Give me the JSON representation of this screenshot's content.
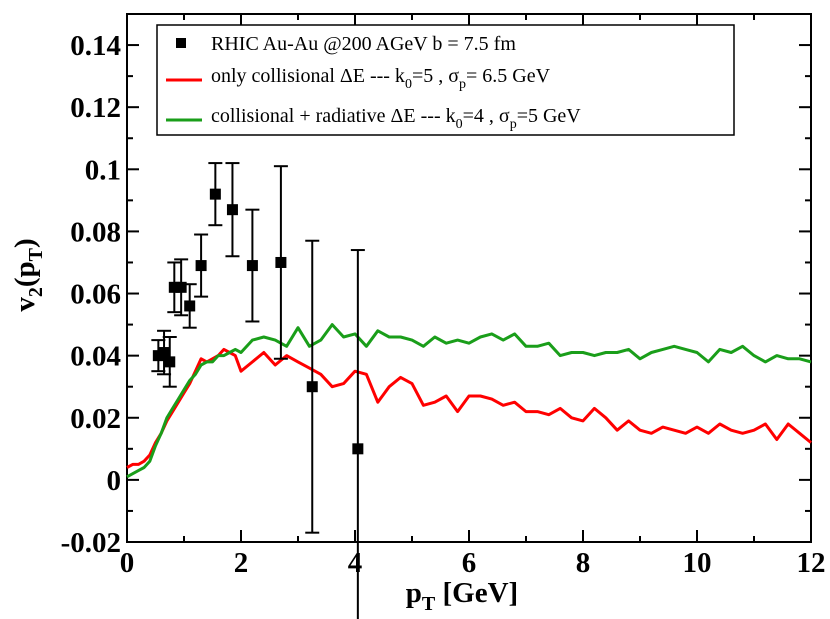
{
  "chart_data": {
    "type": "line",
    "xlabel": "p",
    "xlabel_sub": "T",
    "xlabel_unit": " [GeV]",
    "ylabel": "v",
    "ylabel_sub": "2",
    "ylabel_arg_open": "(p",
    "ylabel_arg_sub": "T",
    "ylabel_arg_close": ")",
    "xlim": [
      0,
      12
    ],
    "ylim": [
      -0.02,
      0.15
    ],
    "x_ticks": [
      0,
      2,
      4,
      6,
      8,
      10,
      12
    ],
    "x_tick_labels": [
      "0",
      "2",
      "4",
      "6",
      "8",
      "10",
      "12"
    ],
    "y_ticks": [
      -0.02,
      0,
      0.02,
      0.04,
      0.06,
      0.08,
      0.1,
      0.12,
      0.14
    ],
    "y_tick_labels": [
      "-0.02",
      "0",
      "0.02",
      "0.04",
      "0.06",
      "0.08",
      "0.1",
      "0.12",
      "0.14"
    ],
    "legend_position": "top",
    "data_points": {
      "name": "RHIC Au-Au @200 AGeV b = 7.5 fm",
      "legend_label": "RHIC Au-Au @200 AGeV b = 7.5 fm",
      "color": "#000000",
      "points": [
        {
          "x": 0.55,
          "y": 0.04,
          "err": 0.005
        },
        {
          "x": 0.65,
          "y": 0.041,
          "err": 0.007
        },
        {
          "x": 0.75,
          "y": 0.038,
          "err": 0.008
        },
        {
          "x": 0.83,
          "y": 0.062,
          "err": 0.008
        },
        {
          "x": 0.95,
          "y": 0.062,
          "err": 0.009
        },
        {
          "x": 1.1,
          "y": 0.056,
          "err": 0.007
        },
        {
          "x": 1.3,
          "y": 0.069,
          "err": 0.01
        },
        {
          "x": 1.55,
          "y": 0.092,
          "err": 0.01
        },
        {
          "x": 1.85,
          "y": 0.087,
          "err": 0.015
        },
        {
          "x": 2.2,
          "y": 0.069,
          "err": 0.018
        },
        {
          "x": 2.7,
          "y": 0.07,
          "err": 0.031
        },
        {
          "x": 3.25,
          "y": 0.03,
          "err": 0.047
        },
        {
          "x": 4.05,
          "y": 0.01,
          "err": 0.064
        }
      ]
    },
    "series": [
      {
        "name": "collisional",
        "legend_parts": [
          "only collisional ΔE --- k",
          "0",
          "=5 , σ",
          "p",
          "= 6.5 GeV"
        ],
        "color": "#ff0000",
        "x": [
          0.0,
          0.1,
          0.2,
          0.3,
          0.4,
          0.5,
          0.6,
          0.7,
          0.8,
          0.9,
          1.0,
          1.1,
          1.2,
          1.3,
          1.4,
          1.5,
          1.6,
          1.7,
          1.8,
          1.9,
          2.0,
          2.2,
          2.4,
          2.6,
          2.8,
          3.0,
          3.2,
          3.4,
          3.6,
          3.8,
          4.0,
          4.2,
          4.4,
          4.6,
          4.8,
          5.0,
          5.2,
          5.4,
          5.6,
          5.8,
          6.0,
          6.2,
          6.4,
          6.6,
          6.8,
          7.0,
          7.2,
          7.4,
          7.6,
          7.8,
          8.0,
          8.2,
          8.4,
          8.6,
          8.8,
          9.0,
          9.2,
          9.4,
          9.6,
          9.8,
          10.0,
          10.2,
          10.4,
          10.6,
          10.8,
          11.0,
          11.2,
          11.4,
          11.6,
          11.8,
          12.0
        ],
        "values": [
          0.004,
          0.005,
          0.005,
          0.006,
          0.008,
          0.012,
          0.015,
          0.019,
          0.022,
          0.025,
          0.028,
          0.031,
          0.035,
          0.039,
          0.038,
          0.039,
          0.04,
          0.042,
          0.041,
          0.04,
          0.035,
          0.038,
          0.041,
          0.037,
          0.04,
          0.038,
          0.036,
          0.034,
          0.03,
          0.031,
          0.035,
          0.034,
          0.025,
          0.03,
          0.033,
          0.031,
          0.024,
          0.025,
          0.027,
          0.022,
          0.027,
          0.027,
          0.026,
          0.024,
          0.025,
          0.022,
          0.022,
          0.021,
          0.023,
          0.02,
          0.019,
          0.023,
          0.02,
          0.016,
          0.019,
          0.016,
          0.015,
          0.017,
          0.016,
          0.015,
          0.017,
          0.015,
          0.018,
          0.016,
          0.015,
          0.016,
          0.018,
          0.013,
          0.018,
          0.015,
          0.012
        ]
      },
      {
        "name": "collisional + radiative",
        "legend_parts": [
          "collisional + radiative ΔE --- k",
          "0",
          "=4 , σ",
          "p",
          "=5 GeV"
        ],
        "color": "#1a9e1a",
        "x": [
          0.0,
          0.1,
          0.2,
          0.3,
          0.4,
          0.5,
          0.6,
          0.7,
          0.8,
          0.9,
          1.0,
          1.1,
          1.2,
          1.3,
          1.4,
          1.5,
          1.6,
          1.7,
          1.8,
          1.9,
          2.0,
          2.2,
          2.4,
          2.6,
          2.8,
          3.0,
          3.2,
          3.4,
          3.6,
          3.8,
          4.0,
          4.2,
          4.4,
          4.6,
          4.8,
          5.0,
          5.2,
          5.4,
          5.6,
          5.8,
          6.0,
          6.2,
          6.4,
          6.6,
          6.8,
          7.0,
          7.2,
          7.4,
          7.6,
          7.8,
          8.0,
          8.2,
          8.4,
          8.6,
          8.8,
          9.0,
          9.2,
          9.4,
          9.6,
          9.8,
          10.0,
          10.2,
          10.4,
          10.6,
          10.8,
          11.0,
          11.2,
          11.4,
          11.6,
          11.8,
          12.0
        ],
        "values": [
          0.001,
          0.002,
          0.003,
          0.004,
          0.006,
          0.011,
          0.015,
          0.02,
          0.023,
          0.026,
          0.029,
          0.032,
          0.034,
          0.037,
          0.038,
          0.038,
          0.04,
          0.04,
          0.041,
          0.042,
          0.041,
          0.045,
          0.046,
          0.045,
          0.043,
          0.049,
          0.043,
          0.045,
          0.05,
          0.046,
          0.047,
          0.043,
          0.048,
          0.046,
          0.046,
          0.045,
          0.043,
          0.046,
          0.044,
          0.045,
          0.044,
          0.046,
          0.047,
          0.045,
          0.047,
          0.043,
          0.043,
          0.044,
          0.04,
          0.041,
          0.041,
          0.04,
          0.041,
          0.041,
          0.042,
          0.039,
          0.041,
          0.042,
          0.043,
          0.042,
          0.041,
          0.038,
          0.042,
          0.041,
          0.043,
          0.04,
          0.038,
          0.04,
          0.039,
          0.039,
          0.038
        ]
      }
    ]
  }
}
